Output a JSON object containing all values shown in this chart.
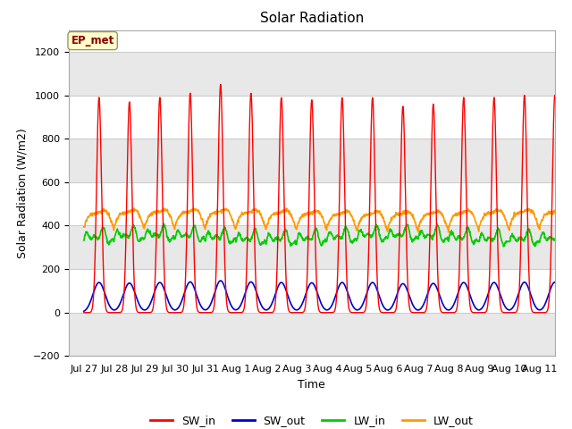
{
  "title": "Solar Radiation",
  "ylabel": "Solar Radiation (W/m2)",
  "xlabel": "Time",
  "ylim": [
    -200,
    1300
  ],
  "yticks": [
    -200,
    0,
    200,
    400,
    600,
    800,
    1000,
    1200
  ],
  "annotation_text": "EP_met",
  "annotation_color": "#8B0000",
  "annotation_bg": "#FFFFCC",
  "annotation_border": "#999966",
  "plot_bg": "#ffffff",
  "band_color": "#e8e8e8",
  "legend_entries": [
    "SW_in",
    "SW_out",
    "LW_in",
    "LW_out"
  ],
  "line_colors": {
    "SW_in": "#ff0000",
    "SW_out": "#0000cc",
    "LW_in": "#00cc00",
    "LW_out": "#ff9900"
  },
  "x_tick_labels": [
    "Jul 27",
    "Jul 28",
    "Jul 29",
    "Jul 30",
    "Jul 31",
    "Aug 1",
    "Aug 2",
    "Aug 3",
    "Aug 4",
    "Aug 5",
    "Aug 6",
    "Aug 7",
    "Aug 8",
    "Aug 9",
    "Aug 10",
    "Aug 11"
  ]
}
